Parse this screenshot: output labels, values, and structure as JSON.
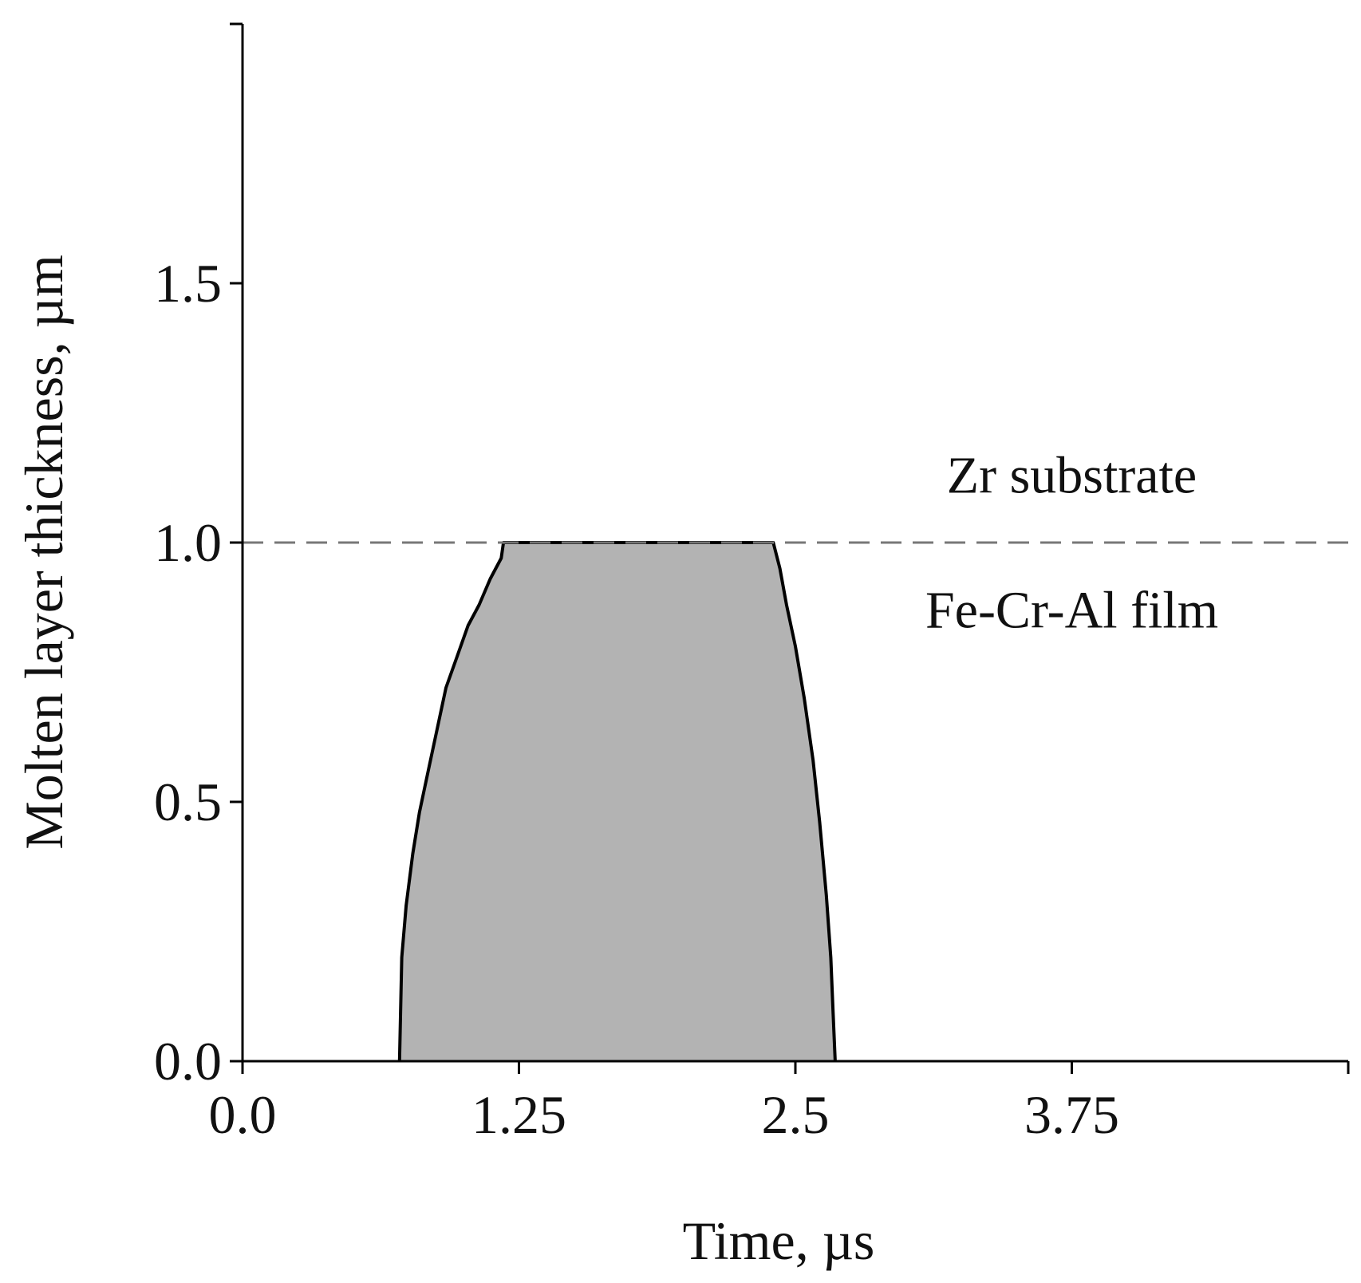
{
  "chart_data": {
    "type": "area",
    "xlabel": "Time, µs",
    "ylabel": "Molten layer thickness, µm",
    "xlim": [
      0,
      5
    ],
    "ylim": [
      0,
      2
    ],
    "x_ticks": [
      0,
      1.25,
      2.5,
      3.75,
      5
    ],
    "x_tick_labels": [
      "0.0",
      "1.25",
      "2.5",
      "3.75",
      ""
    ],
    "y_ticks": [
      0,
      0.5,
      1.0,
      1.5,
      2.0
    ],
    "y_tick_labels": [
      "0.0",
      "0.5",
      "1.0",
      "1.5",
      ""
    ],
    "grid": false,
    "series": [
      {
        "x": [
          0.71,
          0.72,
          0.74,
          0.77,
          0.8,
          0.84,
          0.88,
          0.92,
          0.97,
          1.02,
          1.07,
          1.12,
          1.17,
          1.18,
          1.22,
          1.4,
          1.8,
          2.2,
          2.4,
          2.43,
          2.46,
          2.5,
          2.54,
          2.58,
          2.61,
          2.64,
          2.66,
          2.67,
          2.68
        ],
        "y": [
          0.0,
          0.2,
          0.3,
          0.4,
          0.48,
          0.56,
          0.64,
          0.72,
          0.78,
          0.84,
          0.88,
          0.93,
          0.97,
          1.0,
          1.0,
          1.0,
          1.0,
          1.0,
          1.0,
          0.95,
          0.88,
          0.8,
          0.7,
          0.58,
          0.46,
          0.32,
          0.2,
          0.1,
          0.0
        ],
        "fill": "#b3b3b3",
        "stroke": "#000000"
      }
    ],
    "reference_line": {
      "y": 1.0,
      "style": "dashed",
      "color": "#777777"
    },
    "annotations": [
      {
        "text": "Zr substrate",
        "x": 3.75,
        "y": 1.13
      },
      {
        "text": "Fe-Cr-Al film",
        "x": 3.75,
        "y": 0.87
      }
    ]
  }
}
